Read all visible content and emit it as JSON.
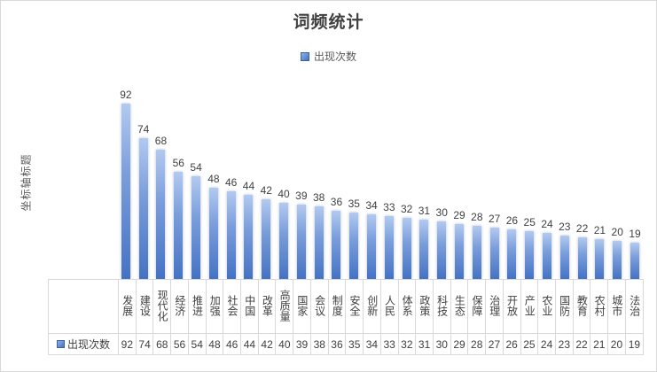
{
  "title": "词频统计",
  "legend": {
    "label": "出现次数"
  },
  "y_axis_title": "坐标轴标题",
  "data_table": {
    "row_header": "出现次数"
  },
  "colors": {
    "bar_fill": "#4472C4",
    "bar_fill_light": "#B2CAF0",
    "grid_border": "#D9D9D9",
    "title_text": "#404040",
    "label_text": "#595959"
  },
  "chart_data": {
    "type": "bar",
    "title": "词频统计",
    "xlabel": "",
    "ylabel": "坐标轴标题",
    "legend_entries": [
      "出现次数"
    ],
    "legend_position": "top",
    "grid": false,
    "data_labels_shown": true,
    "data_table_shown": true,
    "ylim": [
      0,
      100
    ],
    "categories": [
      "发展",
      "建设",
      "现代化",
      "经济",
      "推进",
      "加强",
      "社会",
      "中国",
      "改革",
      "高质量",
      "国家",
      "会议",
      "制度",
      "安全",
      "创新",
      "人民",
      "体系",
      "政策",
      "科技",
      "生态",
      "保障",
      "治理",
      "开放",
      "产业",
      "农业",
      "国防",
      "教育",
      "农村",
      "城市",
      "法治"
    ],
    "series": [
      {
        "name": "出现次数",
        "values": [
          92,
          74,
          68,
          56,
          54,
          48,
          46,
          44,
          42,
          40,
          39,
          38,
          36,
          35,
          34,
          33,
          32,
          31,
          30,
          29,
          28,
          27,
          26,
          25,
          24,
          23,
          22,
          21,
          20,
          19
        ]
      }
    ]
  }
}
